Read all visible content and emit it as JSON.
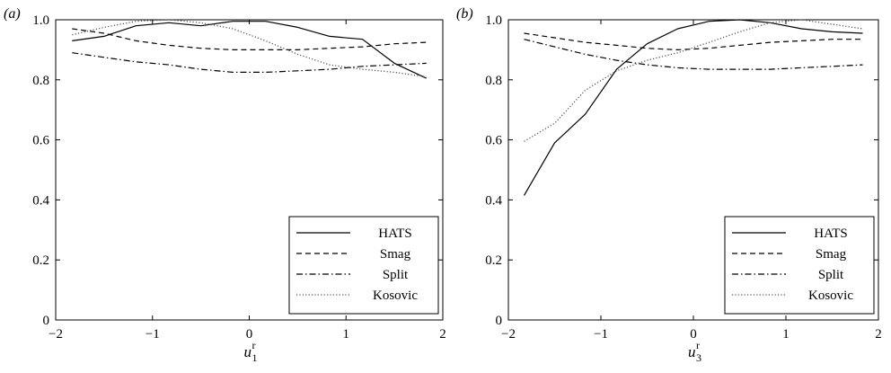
{
  "chart_data": [
    {
      "type": "line",
      "panel_label": "(a)",
      "xlabel": {
        "base": "u",
        "sup": "r",
        "sub": "1"
      },
      "ylabel": "",
      "xlim": [
        -2,
        2
      ],
      "ylim": [
        0,
        1.0
      ],
      "xticks": [
        -2,
        -1,
        0,
        1,
        2
      ],
      "yticks": [
        0,
        0.2,
        0.4,
        0.6,
        0.8,
        1.0
      ],
      "xtick_labels": [
        "−2",
        "−1",
        "0",
        "1",
        "2"
      ],
      "ytick_labels": [
        "0",
        "0.2",
        "0.4",
        "0.6",
        "0.8",
        "1.0"
      ],
      "legend_position": "bottom-right",
      "series": [
        {
          "name": "HATS",
          "style": "solid",
          "x": [
            -1.83,
            -1.5,
            -1.17,
            -0.83,
            -0.5,
            -0.17,
            0.17,
            0.5,
            0.83,
            1.17,
            1.5,
            1.83
          ],
          "y": [
            0.93,
            0.945,
            0.98,
            0.99,
            0.98,
            0.995,
            0.995,
            0.975,
            0.945,
            0.935,
            0.855,
            0.805
          ]
        },
        {
          "name": "Smag",
          "style": "dashed",
          "x": [
            -1.83,
            -1.5,
            -1.17,
            -0.83,
            -0.5,
            -0.17,
            0.17,
            0.5,
            0.83,
            1.17,
            1.5,
            1.83
          ],
          "y": [
            0.97,
            0.955,
            0.93,
            0.915,
            0.905,
            0.9,
            0.9,
            0.9,
            0.905,
            0.91,
            0.92,
            0.925
          ]
        },
        {
          "name": "Split",
          "style": "dashdot",
          "x": [
            -1.83,
            -1.5,
            -1.17,
            -0.83,
            -0.5,
            -0.17,
            0.17,
            0.5,
            0.83,
            1.17,
            1.5,
            1.83
          ],
          "y": [
            0.89,
            0.875,
            0.86,
            0.85,
            0.835,
            0.825,
            0.825,
            0.83,
            0.835,
            0.845,
            0.85,
            0.855
          ]
        },
        {
          "name": "Kosovic",
          "style": "dotted",
          "x": [
            -1.83,
            -1.5,
            -1.17,
            -0.83,
            -0.5,
            -0.17,
            0.17,
            0.5,
            0.83,
            1.17,
            1.5,
            1.83
          ],
          "y": [
            0.95,
            0.975,
            0.995,
            1.0,
            0.99,
            0.97,
            0.93,
            0.885,
            0.85,
            0.835,
            0.825,
            0.81
          ]
        }
      ]
    },
    {
      "type": "line",
      "panel_label": "(b)",
      "xlabel": {
        "base": "u",
        "sup": "r",
        "sub": "3"
      },
      "ylabel": "",
      "xlim": [
        -2,
        2
      ],
      "ylim": [
        0,
        1.0
      ],
      "xticks": [
        -2,
        -1,
        0,
        1,
        2
      ],
      "yticks": [
        0,
        0.2,
        0.4,
        0.6,
        0.8,
        1.0
      ],
      "xtick_labels": [
        "−2",
        "−1",
        "0",
        "1",
        "2"
      ],
      "ytick_labels": [
        "0",
        "0.2",
        "0.4",
        "0.6",
        "0.8",
        "1.0"
      ],
      "legend_position": "bottom-right",
      "series": [
        {
          "name": "HATS",
          "style": "solid",
          "x": [
            -1.83,
            -1.5,
            -1.17,
            -0.83,
            -0.5,
            -0.17,
            0.17,
            0.5,
            0.83,
            1.17,
            1.5,
            1.83
          ],
          "y": [
            0.415,
            0.59,
            0.685,
            0.835,
            0.92,
            0.97,
            0.995,
            1.0,
            0.99,
            0.97,
            0.96,
            0.955
          ]
        },
        {
          "name": "Smag",
          "style": "dashed",
          "x": [
            -1.83,
            -1.5,
            -1.17,
            -0.83,
            -0.5,
            -0.17,
            0.17,
            0.5,
            0.83,
            1.17,
            1.5,
            1.83
          ],
          "y": [
            0.955,
            0.94,
            0.925,
            0.915,
            0.905,
            0.9,
            0.905,
            0.915,
            0.925,
            0.93,
            0.935,
            0.935
          ]
        },
        {
          "name": "Split",
          "style": "dashdot",
          "x": [
            -1.83,
            -1.5,
            -1.17,
            -0.83,
            -0.5,
            -0.17,
            0.17,
            0.5,
            0.83,
            1.17,
            1.5,
            1.83
          ],
          "y": [
            0.935,
            0.91,
            0.885,
            0.865,
            0.85,
            0.84,
            0.835,
            0.835,
            0.835,
            0.84,
            0.845,
            0.85
          ]
        },
        {
          "name": "Kosovic",
          "style": "dotted",
          "x": [
            -1.83,
            -1.5,
            -1.17,
            -0.83,
            -0.5,
            -0.17,
            0.17,
            0.5,
            0.83,
            1.17,
            1.5,
            1.83
          ],
          "y": [
            0.595,
            0.655,
            0.765,
            0.83,
            0.865,
            0.89,
            0.925,
            0.96,
            0.99,
            1.0,
            0.985,
            0.97
          ]
        }
      ]
    }
  ]
}
